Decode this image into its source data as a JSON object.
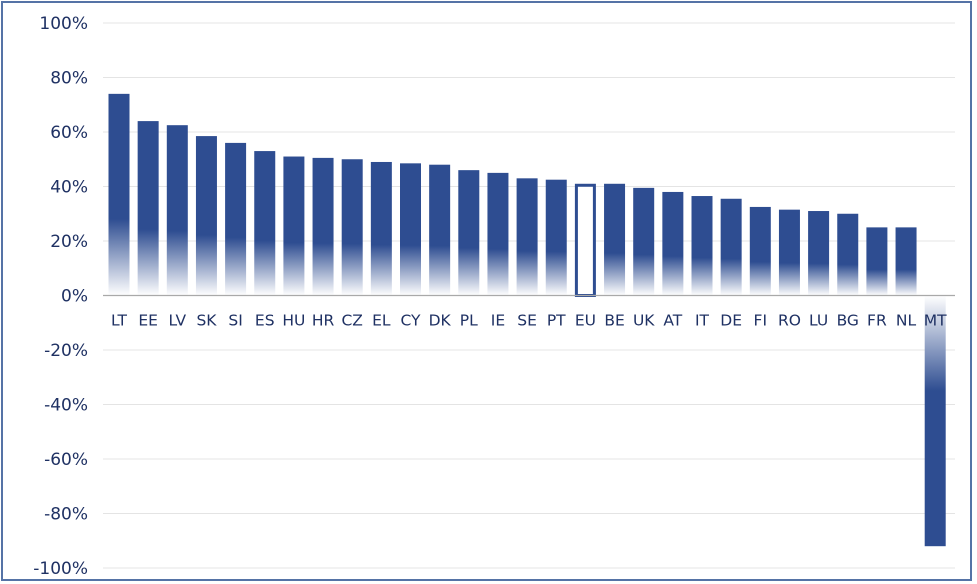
{
  "chart_data": {
    "type": "bar",
    "categories": [
      "LT",
      "EE",
      "LV",
      "SK",
      "SI",
      "ES",
      "HU",
      "HR",
      "CZ",
      "EL",
      "CY",
      "DK",
      "PL",
      "IE",
      "SE",
      "PT",
      "EU",
      "BE",
      "UK",
      "AT",
      "IT",
      "DE",
      "FI",
      "RO",
      "LU",
      "BG",
      "FR",
      "NL",
      "MT"
    ],
    "values": [
      74,
      64,
      62.5,
      58.5,
      56,
      53,
      51,
      50.5,
      50,
      49,
      48.5,
      48,
      46,
      45,
      43,
      42.5,
      41,
      41,
      39.5,
      38,
      36.5,
      35.5,
      32.5,
      31.5,
      31,
      30,
      25,
      25,
      -92
    ],
    "highlight": "EU",
    "y_ticks": [
      "100%",
      "80%",
      "60%",
      "40%",
      "20%",
      "0%",
      "-20%",
      "-40%",
      "-60%",
      "-80%",
      "-100%"
    ],
    "ylim": [
      -100,
      100
    ],
    "grid": true,
    "title": "",
    "xlabel": "",
    "ylabel": "",
    "colors": {
      "bar": "#2e4d91",
      "highlight_border": "#2e4d91",
      "text": "#1f3163",
      "frame": "#5573a6"
    }
  }
}
